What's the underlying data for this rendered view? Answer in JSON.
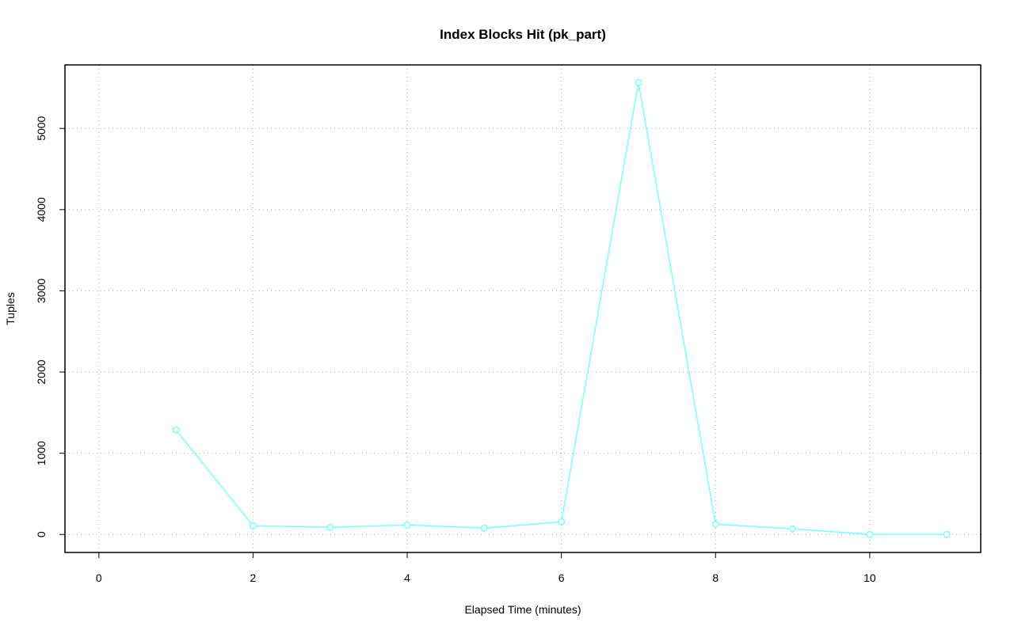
{
  "chart_data": {
    "type": "line",
    "title": "Index Blocks Hit (pk_part)",
    "x_label": "Elapsed Time (minutes)",
    "y_label": "Tuples",
    "x": [
      1,
      2,
      3,
      4,
      5,
      6,
      7,
      8,
      9,
      10,
      11
    ],
    "series": [
      {
        "color": "#7fffff",
        "values": [
          1287,
          107,
          88,
          117,
          78,
          156,
          5565,
          127,
          68,
          0,
          0
        ]
      }
    ],
    "xlim": [
      -0.44,
      11.44
    ],
    "xticks": [
      0,
      2,
      4,
      6,
      8,
      10
    ],
    "ylim": [
      -222,
      5782
    ],
    "yticks": [
      0,
      1000,
      2000,
      3000,
      4000,
      5000
    ],
    "grid": true
  }
}
